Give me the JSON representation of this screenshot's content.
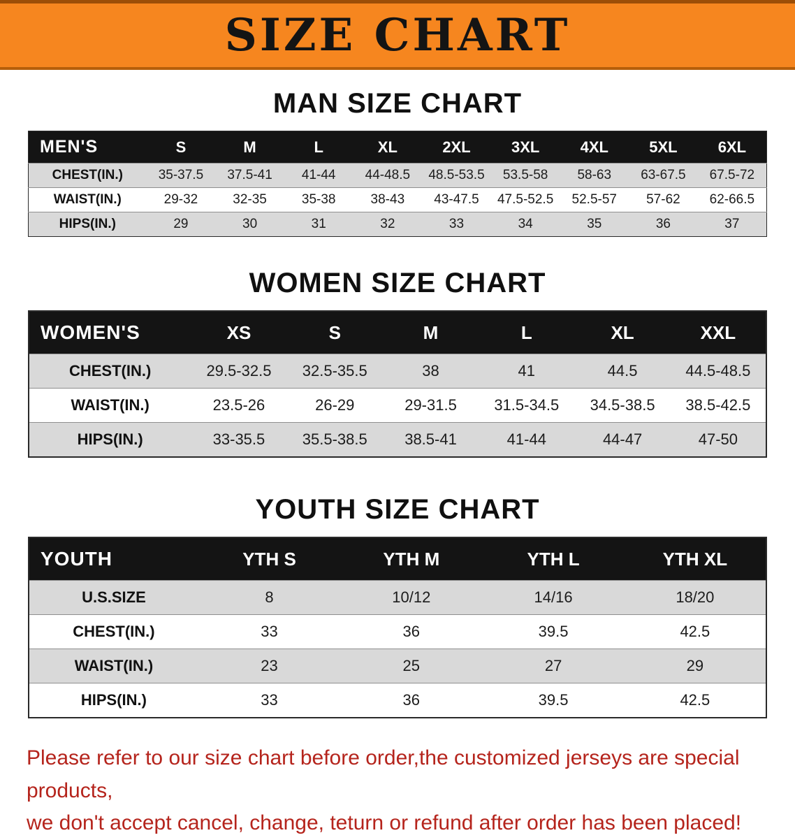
{
  "banner": {
    "title": "SIZE CHART",
    "bg_color": "#f6861f",
    "text_color": "#141414"
  },
  "sections": [
    {
      "heading": "MAN SIZE CHART",
      "table": {
        "header": [
          "MEN'S",
          "S",
          "M",
          "L",
          "XL",
          "2XL",
          "3XL",
          "4XL",
          "5XL",
          "6XL"
        ],
        "rows": [
          [
            "CHEST(IN.)",
            "35-37.5",
            "37.5-41",
            "41-44",
            "44-48.5",
            "48.5-53.5",
            "53.5-58",
            "58-63",
            "63-67.5",
            "67.5-72"
          ],
          [
            "WAIST(IN.)",
            "29-32",
            "32-35",
            "35-38",
            "38-43",
            "43-47.5",
            "47.5-52.5",
            "52.5-57",
            "57-62",
            "62-66.5"
          ],
          [
            "HIPS(IN.)",
            "29",
            "30",
            "31",
            "32",
            "33",
            "34",
            "35",
            "36",
            "37"
          ]
        ]
      }
    },
    {
      "heading": "WOMEN SIZE CHART",
      "table": {
        "header": [
          "WOMEN'S",
          "XS",
          "S",
          "M",
          "L",
          "XL",
          "XXL"
        ],
        "rows": [
          [
            "CHEST(IN.)",
            "29.5-32.5",
            "32.5-35.5",
            "38",
            "41",
            "44.5",
            "44.5-48.5"
          ],
          [
            "WAIST(IN.)",
            "23.5-26",
            "26-29",
            "29-31.5",
            "31.5-34.5",
            "34.5-38.5",
            "38.5-42.5"
          ],
          [
            "HIPS(IN.)",
            "33-35.5",
            "35.5-38.5",
            "38.5-41",
            "41-44",
            "44-47",
            "47-50"
          ]
        ]
      }
    },
    {
      "heading": "YOUTH SIZE CHART",
      "table": {
        "header": [
          "YOUTH",
          "YTH S",
          "YTH M",
          "YTH L",
          "YTH XL"
        ],
        "rows": [
          [
            "U.S.SIZE",
            "8",
            "10/12",
            "14/16",
            "18/20"
          ],
          [
            "CHEST(IN.)",
            "33",
            "36",
            "39.5",
            "42.5"
          ],
          [
            "WAIST(IN.)",
            "23",
            "25",
            "27",
            "29"
          ],
          [
            "HIPS(IN.)",
            "33",
            "36",
            "39.5",
            "42.5"
          ]
        ]
      }
    }
  ],
  "footer": {
    "line1": "Please refer to our size chart before order,the customized jerseys are special products,",
    "line2": "we don't accept cancel, change, teturn or refund after order has been placed!",
    "text_color": "#b5241c"
  }
}
